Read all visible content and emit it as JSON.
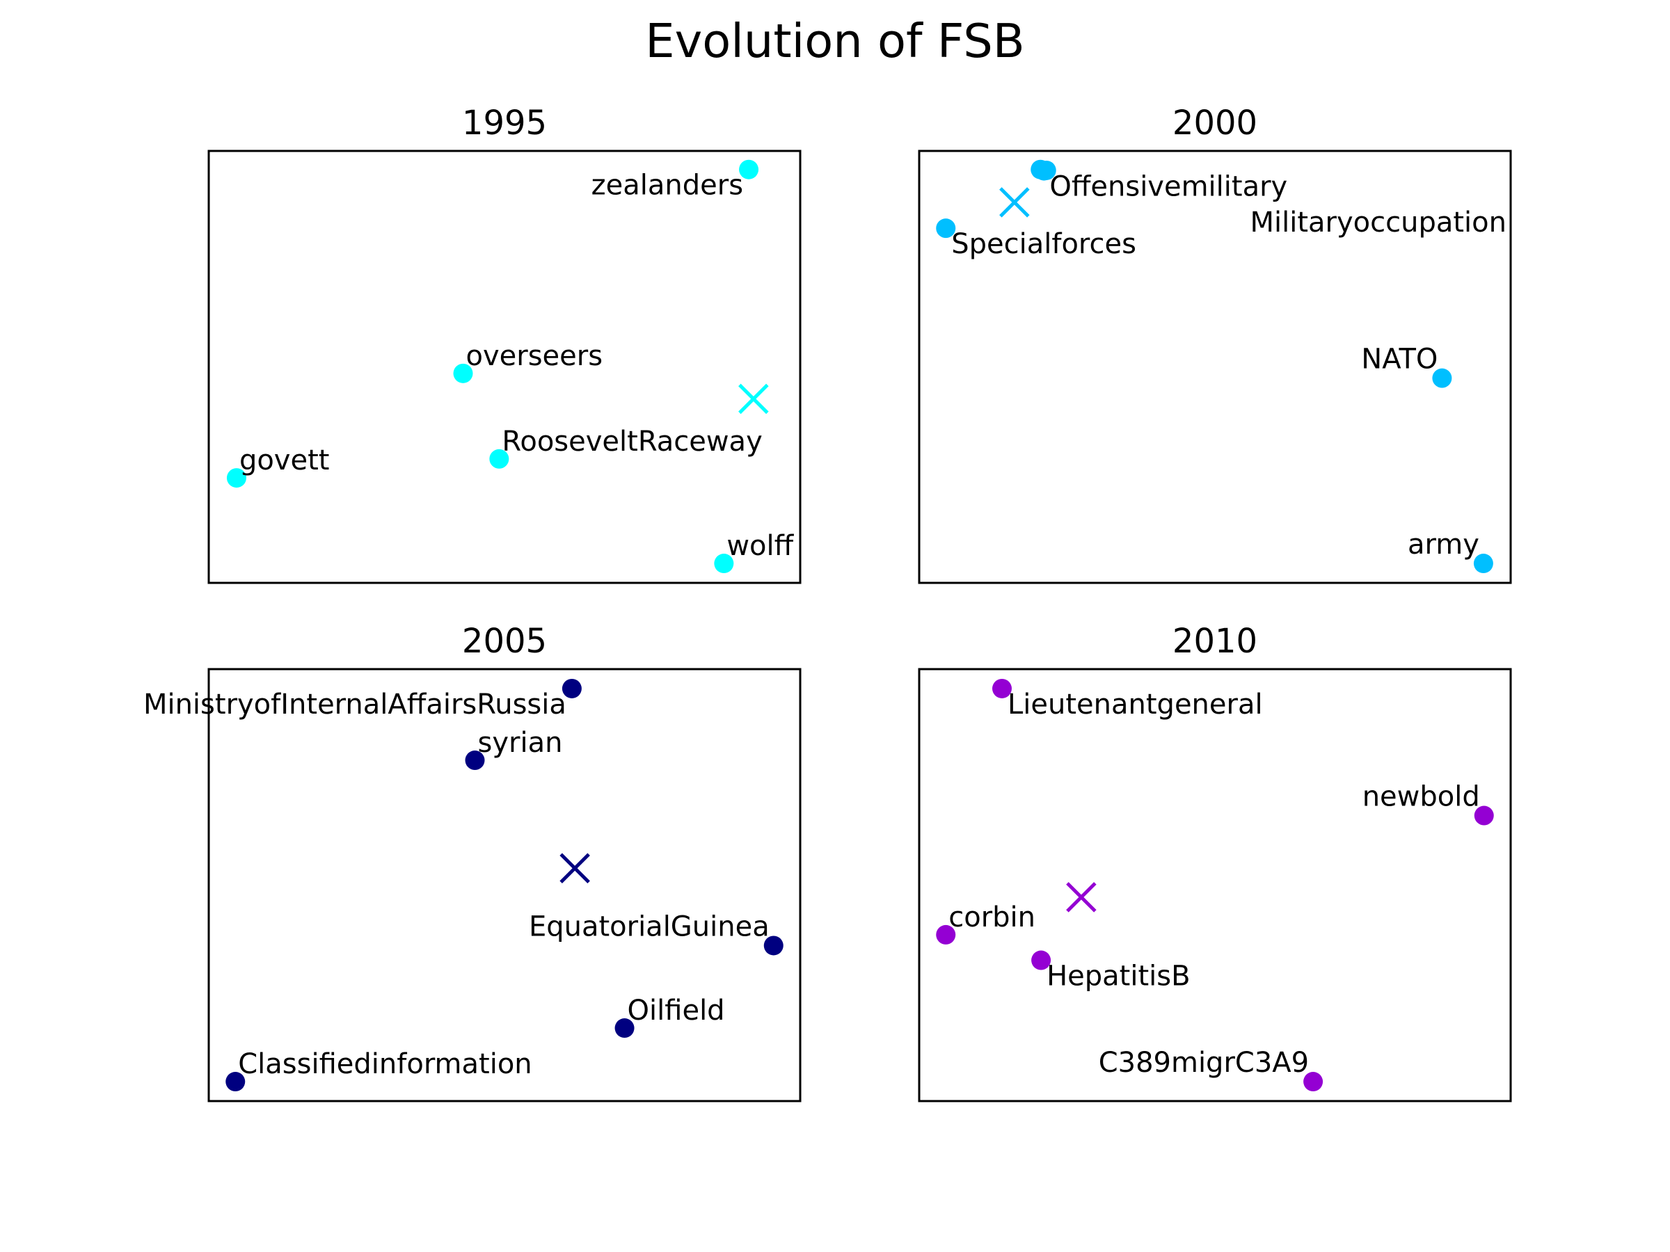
{
  "chart_data": {
    "type": "scatter",
    "title": "Evolution of FSB",
    "grid": false,
    "axes_ticks": false,
    "panels": [
      {
        "title": "1995",
        "color": "#00ffff",
        "xlim": [
          0,
          1
        ],
        "ylim": [
          0,
          1
        ],
        "points": [
          {
            "label": "zealanders",
            "x": 0.913,
            "y": 0.957,
            "label_pos": "below-left"
          },
          {
            "label": "overseers",
            "x": 0.43,
            "y": 0.485,
            "label_pos": "above-right"
          },
          {
            "label": "RooseveltRaceway",
            "x": 0.491,
            "y": 0.287,
            "label_pos": "above-right"
          },
          {
            "label": "govett",
            "x": 0.047,
            "y": 0.243,
            "label_pos": "above-right"
          },
          {
            "label": "wolff",
            "x": 0.871,
            "y": 0.045,
            "label_pos": "above-right"
          }
        ],
        "centroid": {
          "x": 0.921,
          "y": 0.426
        }
      },
      {
        "title": "2000",
        "color": "#00bfff",
        "xlim": [
          0,
          1
        ],
        "ylim": [
          0,
          1
        ],
        "points": [
          {
            "label": "Offensivemilitary",
            "x": 0.211,
            "y": 0.954,
            "label_pos": "below-right"
          },
          {
            "label": "",
            "x": 0.205,
            "y": 0.957,
            "label_pos": "below-right"
          },
          {
            "label": "Specialforces",
            "x": 0.045,
            "y": 0.821,
            "label_pos": "below-right"
          },
          {
            "label": "Militaryoccupation",
            "x": 0.215,
            "y": 0.955,
            "label_pos": "far-below-right"
          },
          {
            "label": "NATO",
            "x": 0.884,
            "y": 0.474,
            "label_pos": "above-left"
          },
          {
            "label": "army",
            "x": 0.954,
            "y": 0.045,
            "label_pos": "above-left"
          }
        ],
        "centroid": {
          "x": 0.161,
          "y": 0.881
        }
      },
      {
        "title": "2005",
        "color": "#000080",
        "xlim": [
          0,
          1
        ],
        "ylim": [
          0,
          1
        ],
        "points": [
          {
            "label": "MinistryofInternalAffairsRussia",
            "x": 0.614,
            "y": 0.955,
            "label_pos": "below-left"
          },
          {
            "label": "syrian",
            "x": 0.45,
            "y": 0.789,
            "label_pos": "above-right"
          },
          {
            "label": "EquatorialGuinea",
            "x": 0.955,
            "y": 0.36,
            "label_pos": "above-left"
          },
          {
            "label": "Oilfield",
            "x": 0.703,
            "y": 0.169,
            "label_pos": "above-right"
          },
          {
            "label": "Classifiedinformation",
            "x": 0.045,
            "y": 0.045,
            "label_pos": "above-right"
          }
        ],
        "centroid": {
          "x": 0.619,
          "y": 0.539
        }
      },
      {
        "title": "2010",
        "color": "#9400d3",
        "xlim": [
          0,
          1
        ],
        "ylim": [
          0,
          1
        ],
        "points": [
          {
            "label": "Lieutenantgeneral",
            "x": 0.14,
            "y": 0.955,
            "label_pos": "below-right"
          },
          {
            "label": "newbold",
            "x": 0.955,
            "y": 0.661,
            "label_pos": "above-left"
          },
          {
            "label": "corbin",
            "x": 0.045,
            "y": 0.385,
            "label_pos": "above-right"
          },
          {
            "label": "HepatitisB",
            "x": 0.206,
            "y": 0.326,
            "label_pos": "below-right"
          },
          {
            "label": "C389migrC3A9",
            "x": 0.666,
            "y": 0.045,
            "label_pos": "above-left"
          }
        ],
        "centroid": {
          "x": 0.274,
          "y": 0.472
        }
      }
    ]
  }
}
